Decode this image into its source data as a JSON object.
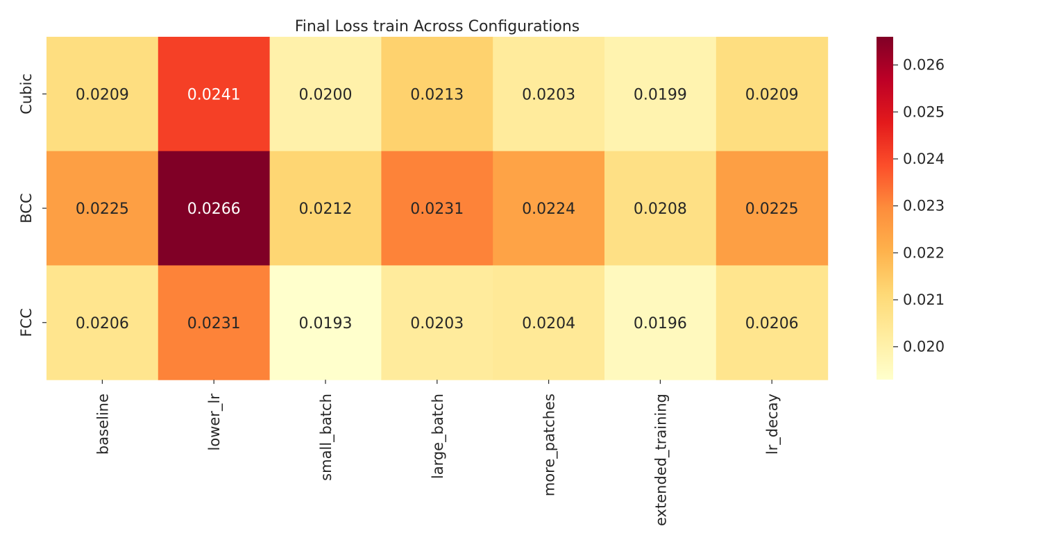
{
  "chart_data": {
    "type": "heatmap",
    "title": "Final Loss train Across Configurations",
    "xlabel": "",
    "ylabel": "",
    "x_categories": [
      "baseline",
      "lower_lr",
      "small_batch",
      "large_batch",
      "more_patches",
      "extended_training",
      "lr_decay"
    ],
    "y_categories": [
      "Cubic",
      "BCC",
      "FCC"
    ],
    "values": [
      [
        0.0209,
        0.0241,
        0.02,
        0.0213,
        0.0203,
        0.0199,
        0.0209
      ],
      [
        0.0225,
        0.0266,
        0.0212,
        0.0231,
        0.0224,
        0.0208,
        0.0225
      ],
      [
        0.0206,
        0.0231,
        0.0193,
        0.0203,
        0.0204,
        0.0196,
        0.0206
      ]
    ],
    "value_labels": [
      [
        "0.0209",
        "0.0241",
        "0.0200",
        "0.0213",
        "0.0203",
        "0.0199",
        "0.0209"
      ],
      [
        "0.0225",
        "0.0266",
        "0.0212",
        "0.0231",
        "0.0224",
        "0.0208",
        "0.0225"
      ],
      [
        "0.0206",
        "0.0231",
        "0.0193",
        "0.0203",
        "0.0204",
        "0.0196",
        "0.0206"
      ]
    ],
    "colormap": "YlOrRd",
    "colorbar": {
      "vmin": 0.0193,
      "vmax": 0.0266,
      "ticks": [
        0.02,
        0.021,
        0.022,
        0.023,
        0.024,
        0.025,
        0.026
      ],
      "tick_labels": [
        "0.020",
        "0.021",
        "0.022",
        "0.023",
        "0.024",
        "0.025",
        "0.026"
      ]
    },
    "grid": false,
    "legend": "colorbar-right"
  },
  "colors": {
    "ramp": [
      "#ffffcc",
      "#ffeda0",
      "#fed976",
      "#feb24c",
      "#fd8d3c",
      "#fc4e2a",
      "#e31a1c",
      "#bd0026",
      "#800026"
    ],
    "dark_text": "#262626",
    "light_text": "#ffffff"
  }
}
